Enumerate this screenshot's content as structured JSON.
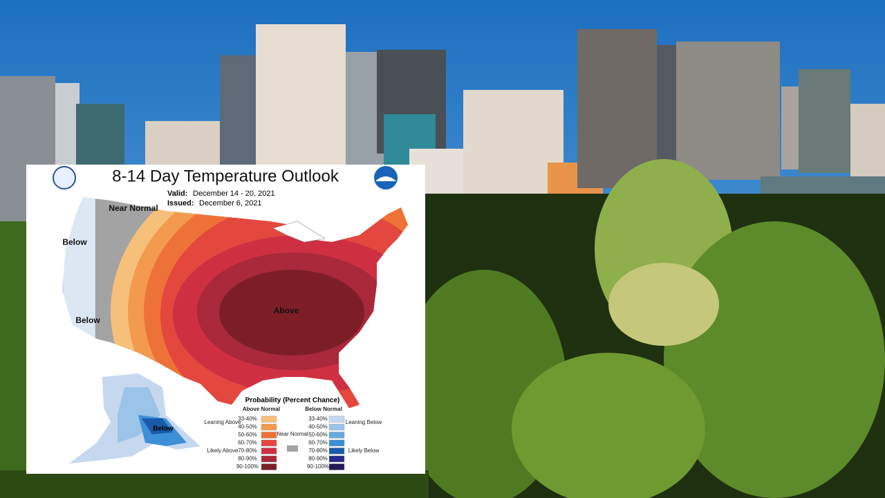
{
  "outlook": {
    "title": "8-14 Day Temperature Outlook",
    "valid_label": "Valid:",
    "valid": "December 14 - 20, 2021",
    "issued_label": "Issued:",
    "issued": "December 6, 2021",
    "map_labels": [
      "Near Normal",
      "Below",
      "Below",
      "Above",
      "Below"
    ],
    "legend": {
      "title": "Probability (Percent Chance)",
      "above_header": "Above Normal",
      "below_header": "Below Normal",
      "above_ranges": [
        "33-40%",
        "40-50%",
        "50-60%",
        "60-70%",
        "70-80%",
        "80-90%",
        "90-100%"
      ],
      "below_ranges": [
        "33-40%",
        "40-50%",
        "50-60%",
        "60-70%",
        "70-80%",
        "80-90%",
        "90-100%"
      ],
      "leaning_above": "Leaning Above",
      "likely_above": "Likely Above",
      "near_normal": "Near Normal",
      "leaning_below": "Leaning Below",
      "likely_below": "Likely Below"
    }
  }
}
